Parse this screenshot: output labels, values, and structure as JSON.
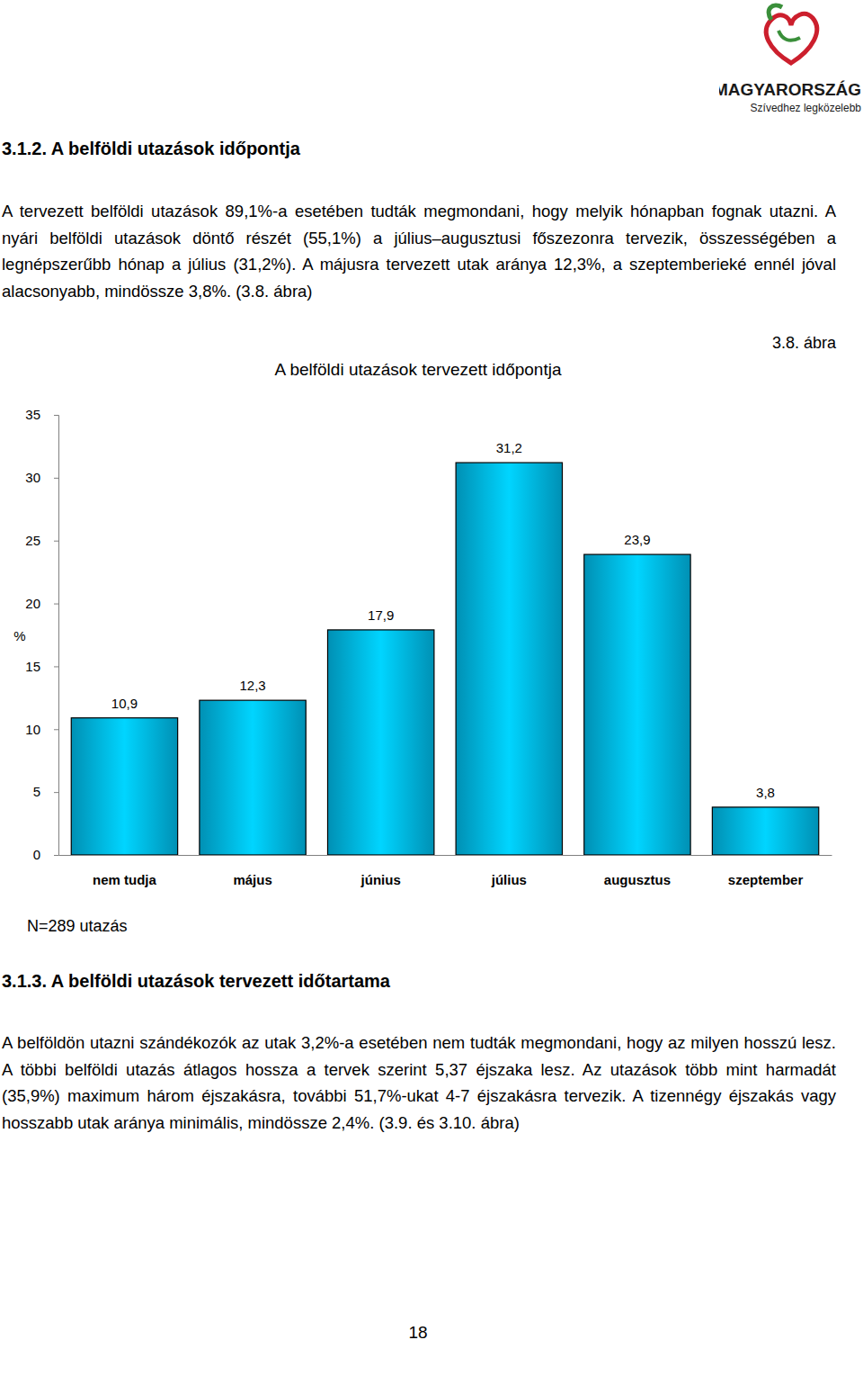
{
  "document": {
    "logo": {
      "name": "MAGYARORSZÁG",
      "slogan": "Szívedhez legközelebb"
    },
    "sections": [
      {
        "heading": "3.1.2. A belföldi utazások időpontja",
        "paragraph": "A tervezett belföldi utazások 89,1%-a esetében tudták megmondani, hogy melyik hónapban fognak utazni. A nyári belföldi utazások döntő részét (55,1%) a július–augusztusi főszezonra tervezik, összességében a legnépszerűbb hónap a július (31,2%). A májusra tervezett utak aránya 12,3%, a szeptemberieké ennél jóval alacsonyabb, mindössze 3,8%. (3.8. ábra)"
      },
      {
        "heading": "3.1.3. A belföldi utazások tervezett időtartama",
        "paragraph": "A belföldön utazni szándékozók az utak 3,2%-a esetében nem tudták megmondani, hogy az milyen hosszú lesz. A többi belföldi utazás átlagos hossza a tervek szerint 5,37 éjszaka lesz. Az utazások több mint harmadát (35,9%) maximum három éjszakásra, további 51,7%-ukat 4-7 éjszakásra tervezik. A tizennégy éjszakás vagy hosszabb utak aránya minimális, mindössze 2,4%. (3.9. és 3.10. ábra)"
      }
    ],
    "page_number": "18"
  },
  "chart_data": {
    "type": "bar",
    "title": "A belföldi utazások tervezett időpontja",
    "annotations": [
      "3.8. ábra",
      "N=289 utazás"
    ],
    "y_label": "%",
    "categories": [
      "nem tudja",
      "május",
      "június",
      "július",
      "augusztus",
      "szeptember"
    ],
    "values": [
      10.9,
      12.3,
      17.9,
      31.2,
      23.9,
      3.8
    ],
    "value_labels": [
      "10,9",
      "12,3",
      "17,9",
      "31,2",
      "23,9",
      "3,8"
    ],
    "data_labels": true,
    "color": "#00bfef",
    "ylim": [
      0,
      35
    ],
    "yticks": [
      0,
      5,
      10,
      15,
      20,
      25,
      30,
      35
    ],
    "grid": false
  }
}
